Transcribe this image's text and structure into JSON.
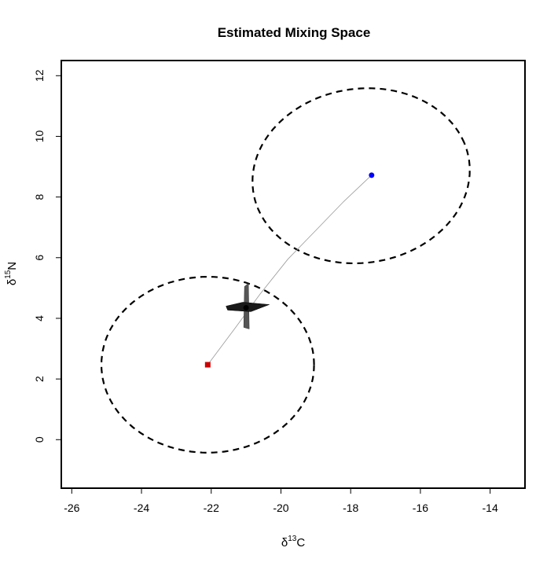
{
  "chart_data": {
    "type": "scatter",
    "title": "Estimated Mixing Space",
    "xlabel": {
      "prefix": "δ",
      "sup": "13",
      "suffix": "C"
    },
    "ylabel": {
      "prefix": "δ",
      "sup": "15",
      "suffix": "N"
    },
    "xlim": [
      -26.3,
      -13.0
    ],
    "ylim": [
      -1.6,
      12.5
    ],
    "xticks": [
      -26,
      -24,
      -22,
      -20,
      -18,
      -16,
      -14
    ],
    "yticks": [
      0,
      2,
      4,
      6,
      8,
      10,
      12
    ],
    "grid": false,
    "sources": [
      {
        "x": -17.4,
        "y": 8.72,
        "color": "#0000ff",
        "shape": "circle"
      },
      {
        "x": -22.1,
        "y": 2.47,
        "color": "#cc0000",
        "shape": "square"
      }
    ],
    "source_ellipses": [
      {
        "cx": -17.7,
        "cy": 8.7,
        "rx": 3.15,
        "ry": 2.85,
        "angle": 0.35
      },
      {
        "cx": -22.1,
        "cy": 2.47,
        "rx": 3.05,
        "ry": 2.9,
        "angle": 0.0
      }
    ],
    "mixing_line": [
      [
        -22.1,
        2.47
      ],
      [
        -21.3,
        3.7
      ],
      [
        -20.6,
        4.8
      ],
      [
        -19.8,
        5.95
      ],
      [
        -19.0,
        6.9
      ],
      [
        -18.2,
        7.85
      ],
      [
        -17.4,
        8.72
      ]
    ],
    "mixture_estimate": {
      "x": -21.0,
      "y": 4.35,
      "x_spread": 1.15,
      "y_spread": 1.4
    }
  }
}
